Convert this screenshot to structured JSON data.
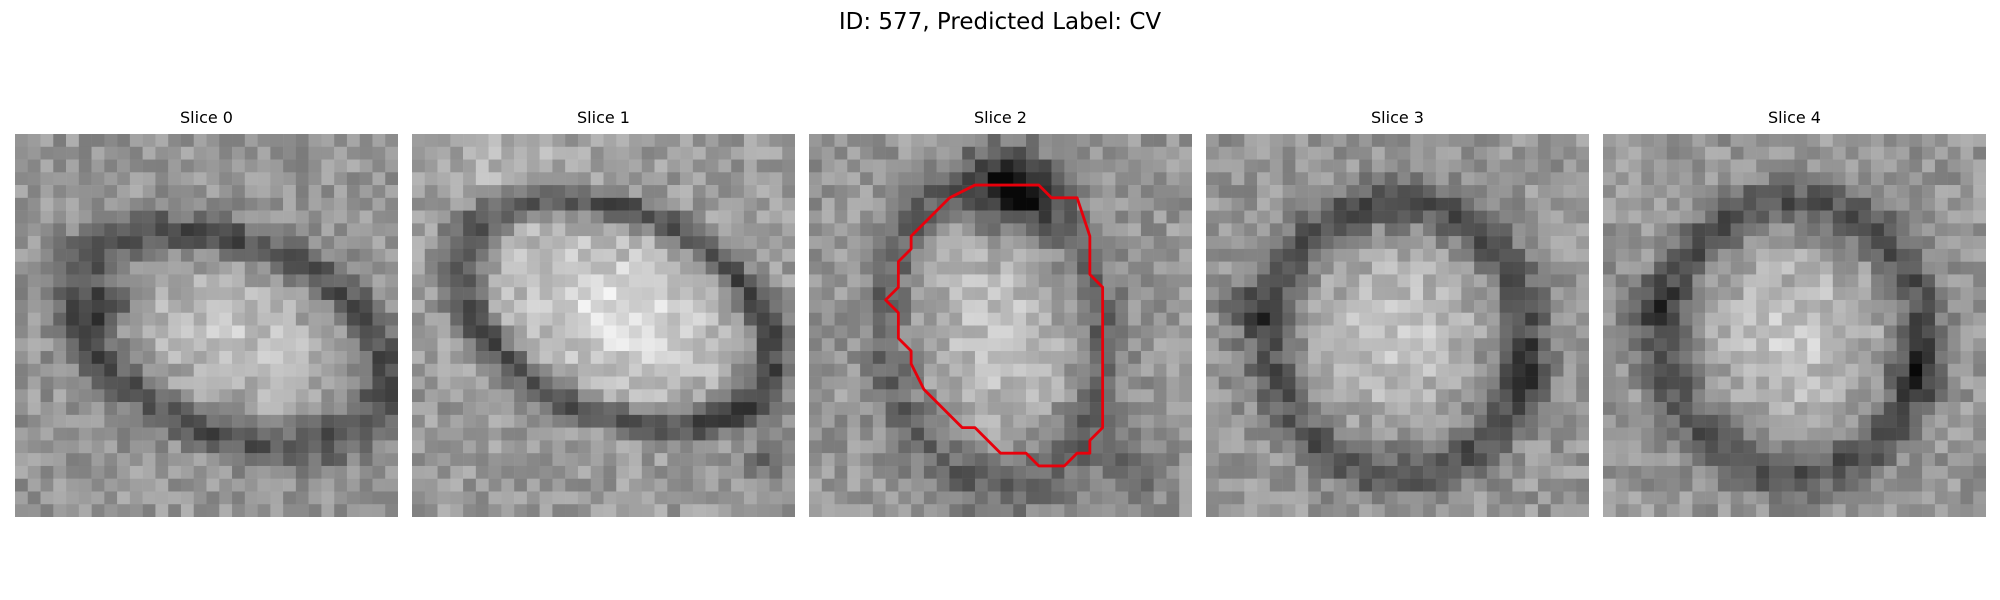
{
  "figure": {
    "title": "ID: 577, Predicted Label: CV"
  },
  "panels": [
    {
      "title": "Slice 0",
      "has_contour": false
    },
    {
      "title": "Slice 1",
      "has_contour": false
    },
    {
      "title": "Slice 2",
      "has_contour": true,
      "contour_color": "#e8000b"
    },
    {
      "title": "Slice 3",
      "has_contour": false
    },
    {
      "title": "Slice 4",
      "has_contour": false
    }
  ],
  "colors": {
    "background": "#ffffff",
    "contour": "#e8000b"
  }
}
